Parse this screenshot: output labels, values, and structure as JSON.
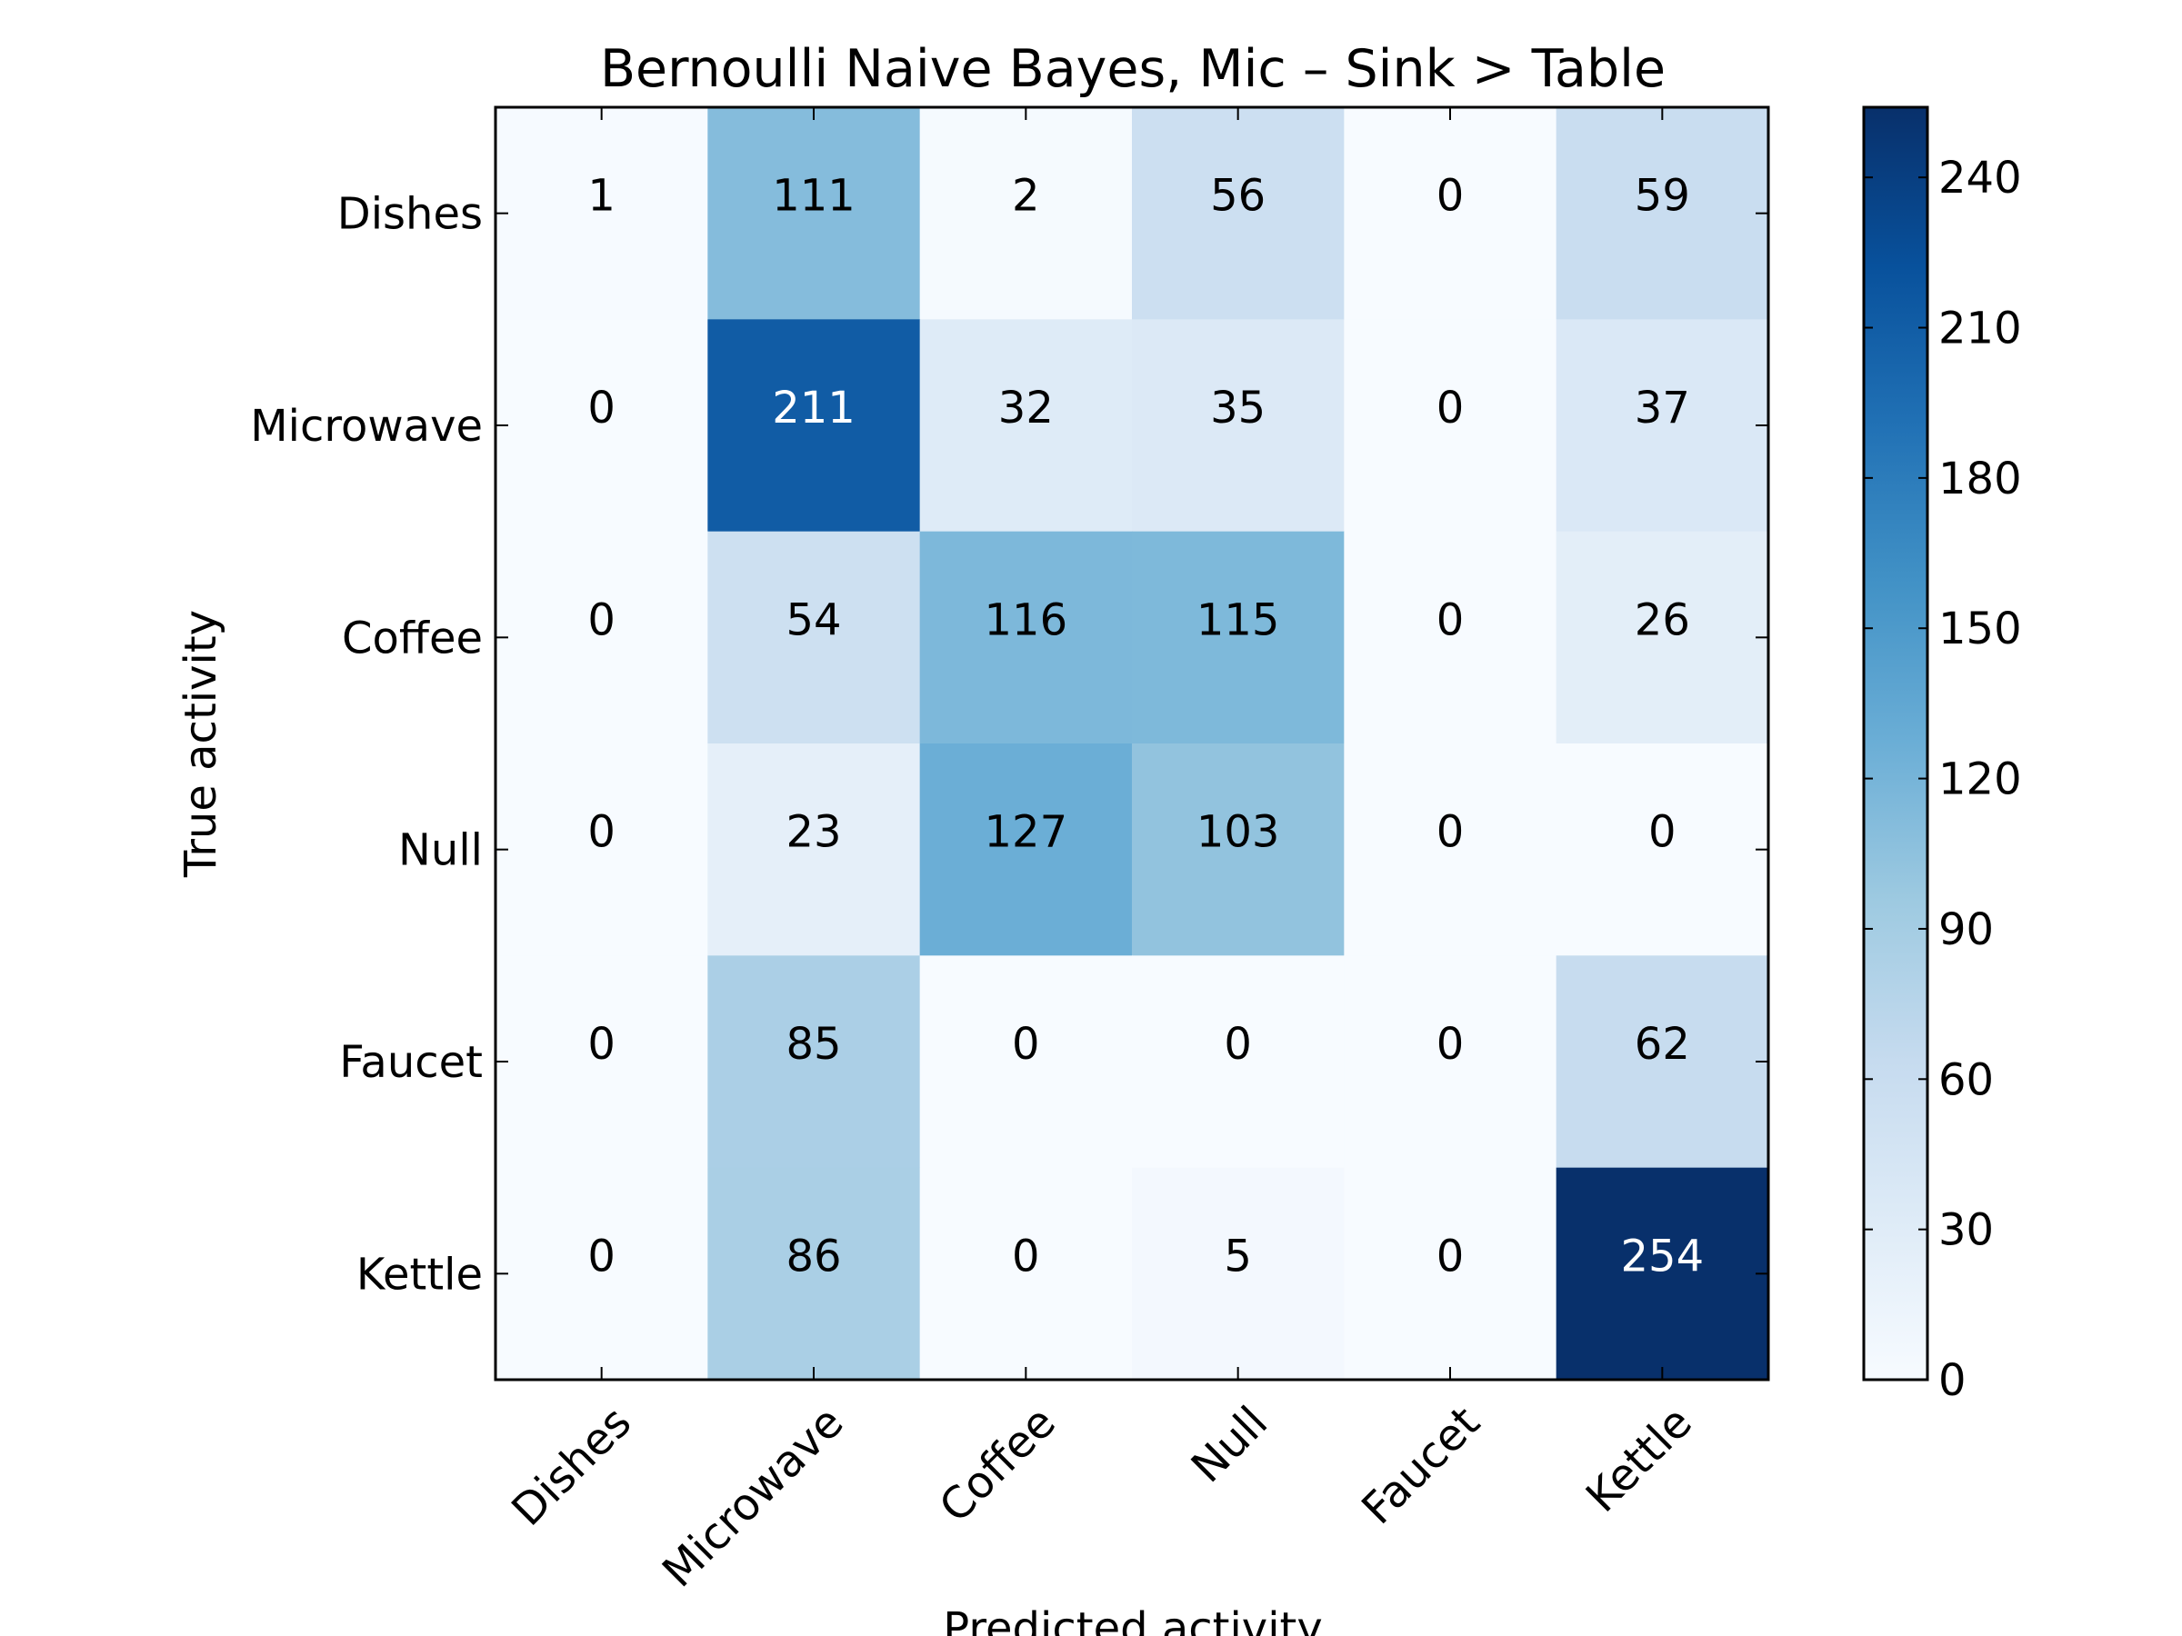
{
  "chart_data": {
    "type": "heatmap",
    "title": "Bernoulli Naive Bayes, Mic – Sink > Table",
    "xlabel": "Predicted activity",
    "ylabel": "True activity",
    "x_categories": [
      "Dishes",
      "Microwave",
      "Coffee",
      "Null",
      "Faucet",
      "Kettle"
    ],
    "y_categories": [
      "Dishes",
      "Microwave",
      "Coffee",
      "Null",
      "Faucet",
      "Kettle"
    ],
    "values": [
      [
        1,
        111,
        2,
        56,
        0,
        59
      ],
      [
        0,
        211,
        32,
        35,
        0,
        37
      ],
      [
        0,
        54,
        116,
        115,
        0,
        26
      ],
      [
        0,
        23,
        127,
        103,
        0,
        0
      ],
      [
        0,
        85,
        0,
        0,
        0,
        62
      ],
      [
        0,
        86,
        0,
        5,
        0,
        254
      ]
    ],
    "colormap": "Blues",
    "vmin": 0,
    "vmax": 254,
    "colorbar_ticks": [
      0,
      30,
      60,
      90,
      120,
      150,
      180,
      210,
      240
    ]
  }
}
